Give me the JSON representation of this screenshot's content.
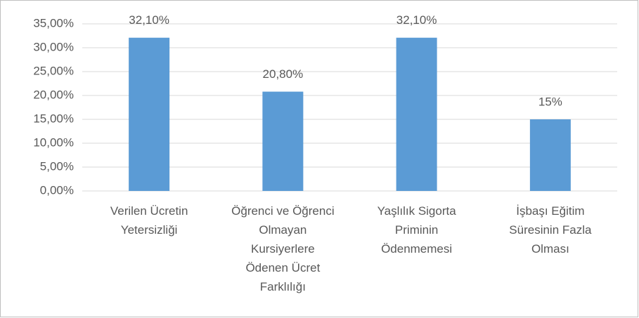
{
  "chart_data": {
    "type": "bar",
    "categories": [
      "Verilen Ücretin\nYetersizliği",
      "Öğrenci ve Öğrenci\nOlmayan\nKursiyerlere\nÖdenen Ücret\nFarklılığı",
      "Yaşlılık Sigorta\nPriminin\nÖdenmemesi",
      "İşbaşı Eğitim\nSüresinin Fazla\nOlması"
    ],
    "values": [
      32.1,
      20.8,
      32.1,
      15
    ],
    "value_labels": [
      "32,10%",
      "20,80%",
      "32,10%",
      "15%"
    ],
    "color": "#5b9bd5",
    "ylim": [
      0,
      35
    ],
    "yticks": [
      {
        "value": 0,
        "label": "0,00%"
      },
      {
        "value": 5,
        "label": "5,00%"
      },
      {
        "value": 10,
        "label": "10,00%"
      },
      {
        "value": 15,
        "label": "15,00%"
      },
      {
        "value": 20,
        "label": "20,00%"
      },
      {
        "value": 25,
        "label": "25,00%"
      },
      {
        "value": 30,
        "label": "30,00%"
      },
      {
        "value": 35,
        "label": "35,00%"
      }
    ],
    "grid": true
  }
}
